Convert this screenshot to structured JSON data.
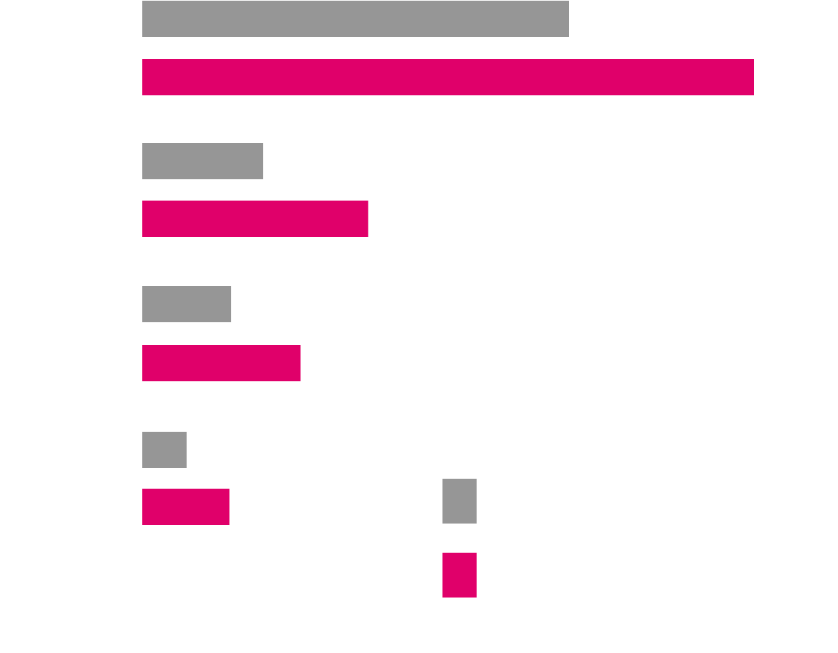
{
  "colors": {
    "series_a": "#969696",
    "series_b": "#e0006a",
    "background": "#ffffff"
  },
  "chart_data": {
    "type": "bar",
    "orientation": "horizontal",
    "categories": [
      "",
      "",
      "",
      ""
    ],
    "series": [
      {
        "values": [
          12.0,
          3.4,
          2.5,
          1.25
        ]
      },
      {
        "values": [
          17.2,
          6.35,
          4.45,
          2.45
        ]
      }
    ],
    "xlim": [
      0,
      18
    ],
    "grid": false,
    "axes_visible": false,
    "legend": "bottom-right"
  }
}
